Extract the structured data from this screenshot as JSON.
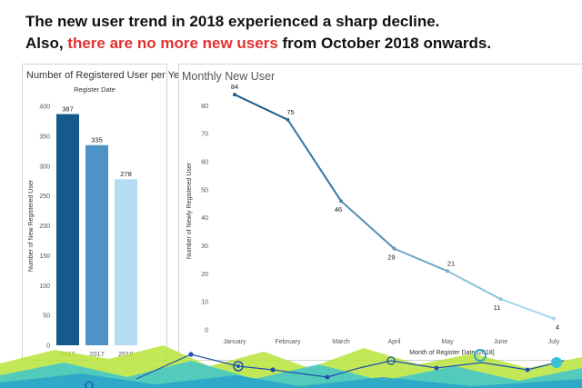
{
  "headline": {
    "line1": "The new user trend in 2018 experienced a sharp decline.",
    "line2_prefix": "Also, ",
    "line2_highlight": "there are no more new users",
    "line2_suffix": " from October 2018 onwards."
  },
  "colors": {
    "highlight": "#e03131",
    "bar_2016": "#155a8a",
    "bar_2017": "#4f93c6",
    "bar_2018": "#b4dcf2",
    "line_start": "#1b5f8e",
    "line_end": "#a7d7ef"
  },
  "chart_data": [
    {
      "type": "bar",
      "title": "Number of Registered User per Year",
      "xlabel_top": "Register Date",
      "ylabel": "Number of New Registered User",
      "categories": [
        "2016",
        "2017",
        "2018"
      ],
      "values": [
        387,
        335,
        278
      ],
      "ylim": [
        0,
        400
      ],
      "yticks": [
        0,
        50,
        100,
        150,
        200,
        250,
        300,
        350,
        400
      ],
      "grid": false
    },
    {
      "type": "line",
      "title": "Monthly New User",
      "xlabel": "Month of Register Date [2018]",
      "ylabel": "Number of Newly Registered User",
      "categories": [
        "January",
        "February",
        "March",
        "April",
        "May",
        "June",
        "July"
      ],
      "values": [
        84,
        75,
        46,
        29,
        21,
        11,
        4
      ],
      "ylim": [
        0,
        85
      ],
      "yticks": [
        0,
        10,
        20,
        30,
        40,
        50,
        60,
        70,
        80
      ],
      "grid": false
    }
  ]
}
